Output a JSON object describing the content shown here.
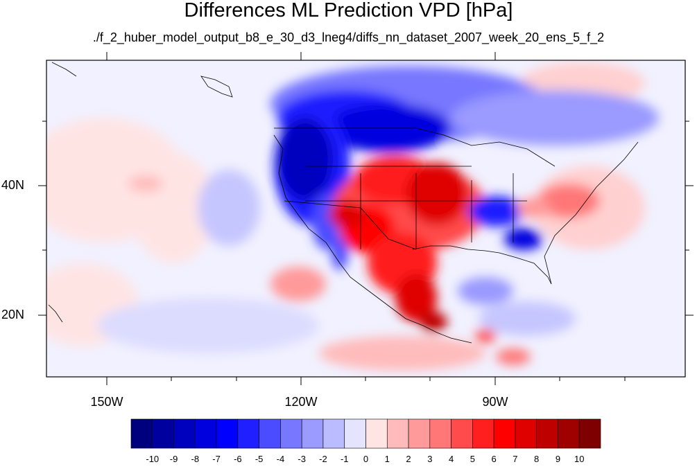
{
  "header": {
    "title": "Differences ML Prediction VPD [hPa]",
    "subtitle": "./f_2_huber_model_output_b8_e_30_d3_lneg4/diffs_nn_dataset_2007_week_20_ens_5_f_2"
  },
  "map": {
    "lon_labels": [
      "150W",
      "120W",
      "90W"
    ],
    "lat_labels": [
      "40N",
      "20N"
    ]
  },
  "colorbar": {
    "labels": [
      "-10",
      "-9",
      "-8",
      "-7",
      "-6",
      "-5",
      "-4",
      "-3",
      "-2",
      "-1",
      "0",
      "1",
      "2",
      "3",
      "4",
      "5",
      "6",
      "7",
      "8",
      "9",
      "10"
    ],
    "colors": [
      "#00007f",
      "#00009f",
      "#0000bf",
      "#0000df",
      "#0000ff",
      "#1f1fff",
      "#4b4bff",
      "#7777ff",
      "#9a9aff",
      "#bbbbff",
      "#e4e4ff",
      "#ffe4e4",
      "#ffbbbb",
      "#ff9a9a",
      "#ff7777",
      "#ff4b4b",
      "#ff1f1f",
      "#ff0000",
      "#df0000",
      "#bf0000",
      "#9f0000",
      "#7f0000"
    ]
  }
}
